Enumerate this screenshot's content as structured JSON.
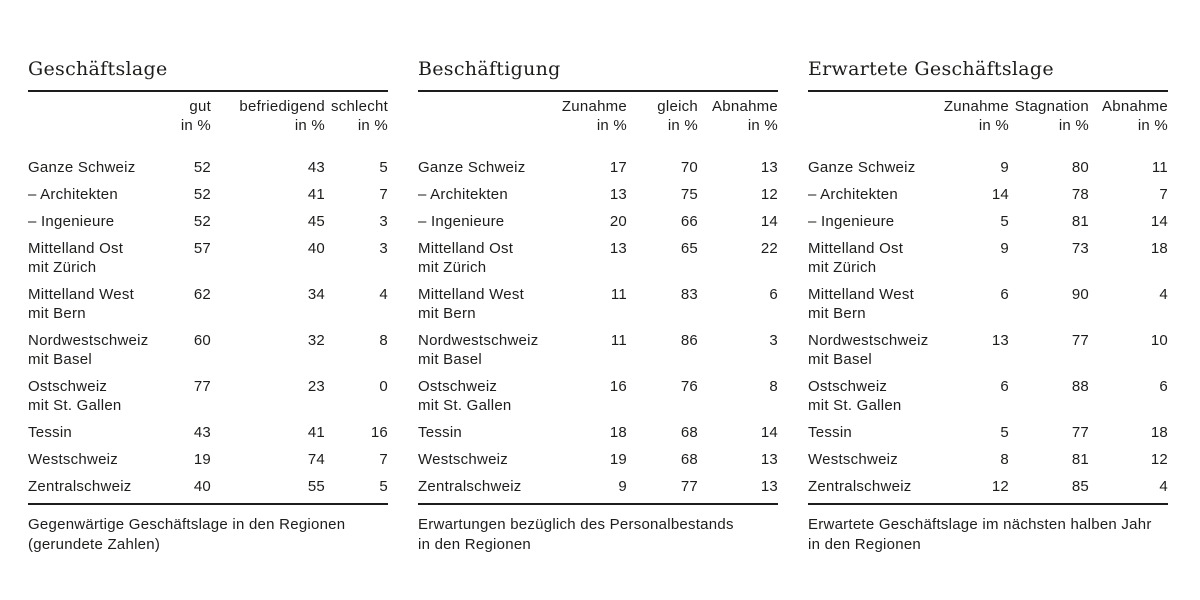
{
  "page": {
    "background": "#ffffff",
    "text_color": "#1d1d1b",
    "rule_color": "#1d1d1b"
  },
  "tables": [
    {
      "title": "Geschäftslage",
      "columns": [
        {
          "label": "gut",
          "unit": "in %"
        },
        {
          "label": "befriedigend",
          "unit": "in %"
        },
        {
          "label": "schlecht",
          "unit": "in %"
        }
      ],
      "rows": [
        {
          "label": "Ganze Schweiz",
          "sublabel": "",
          "values": [
            "52",
            "43",
            "5"
          ]
        },
        {
          "label": "– Architekten",
          "sublabel": "",
          "values": [
            "52",
            "41",
            "7"
          ]
        },
        {
          "label": "– Ingenieure",
          "sublabel": "",
          "values": [
            "52",
            "45",
            "3"
          ]
        },
        {
          "label": "Mittelland Ost",
          "sublabel": "mit Zürich",
          "values": [
            "57",
            "40",
            "3"
          ]
        },
        {
          "label": "Mittelland West",
          "sublabel": "mit Bern",
          "values": [
            "62",
            "34",
            "4"
          ]
        },
        {
          "label": "Nordwestschweiz",
          "sublabel": "mit Basel",
          "values": [
            "60",
            "32",
            "8"
          ]
        },
        {
          "label": "Ostschweiz",
          "sublabel": "mit St. Gallen",
          "values": [
            "77",
            "23",
            "0"
          ]
        },
        {
          "label": "Tessin",
          "sublabel": "",
          "values": [
            "43",
            "41",
            "16"
          ]
        },
        {
          "label": "Westschweiz",
          "sublabel": "",
          "values": [
            "19",
            "74",
            "7"
          ]
        },
        {
          "label": "Zentralschweiz",
          "sublabel": "",
          "values": [
            "40",
            "55",
            "5"
          ]
        }
      ],
      "caption_lines": [
        "Gegenwärtige Geschäftslage in den Regionen",
        "(gerundete Zahlen)"
      ]
    },
    {
      "title": "Beschäftigung",
      "columns": [
        {
          "label": "Zunahme",
          "unit": "in %"
        },
        {
          "label": "gleich",
          "unit": "in %"
        },
        {
          "label": "Abnahme",
          "unit": "in %"
        }
      ],
      "rows": [
        {
          "label": "Ganze Schweiz",
          "sublabel": "",
          "values": [
            "17",
            "70",
            "13"
          ]
        },
        {
          "label": "– Architekten",
          "sublabel": "",
          "values": [
            "13",
            "75",
            "12"
          ]
        },
        {
          "label": "– Ingenieure",
          "sublabel": "",
          "values": [
            "20",
            "66",
            "14"
          ]
        },
        {
          "label": "Mittelland Ost",
          "sublabel": "mit Zürich",
          "values": [
            "13",
            "65",
            "22"
          ]
        },
        {
          "label": "Mittelland West",
          "sublabel": "mit Bern",
          "values": [
            "11",
            "83",
            "6"
          ]
        },
        {
          "label": "Nordwestschweiz",
          "sublabel": "mit Basel",
          "values": [
            "11",
            "86",
            "3"
          ]
        },
        {
          "label": "Ostschweiz",
          "sublabel": "mit St. Gallen",
          "values": [
            "16",
            "76",
            "8"
          ]
        },
        {
          "label": "Tessin",
          "sublabel": "",
          "values": [
            "18",
            "68",
            "14"
          ]
        },
        {
          "label": "Westschweiz",
          "sublabel": "",
          "values": [
            "19",
            "68",
            "13"
          ]
        },
        {
          "label": "Zentralschweiz",
          "sublabel": "",
          "values": [
            "9",
            "77",
            "13"
          ]
        }
      ],
      "caption_lines": [
        "Erwartungen bezüglich des Personalbestands",
        "in den Regionen"
      ]
    },
    {
      "title": "Erwartete Geschäftslage",
      "columns": [
        {
          "label": "Zunahme",
          "unit": "in %"
        },
        {
          "label": "Stagnation",
          "unit": "in %"
        },
        {
          "label": "Abnahme",
          "unit": "in %"
        }
      ],
      "rows": [
        {
          "label": "Ganze Schweiz",
          "sublabel": "",
          "values": [
            "9",
            "80",
            "11"
          ]
        },
        {
          "label": "– Architekten",
          "sublabel": "",
          "values": [
            "14",
            "78",
            "7"
          ]
        },
        {
          "label": "– Ingenieure",
          "sublabel": "",
          "values": [
            "5",
            "81",
            "14"
          ]
        },
        {
          "label": "Mittelland Ost",
          "sublabel": "mit Zürich",
          "values": [
            "9",
            "73",
            "18"
          ]
        },
        {
          "label": "Mittelland West",
          "sublabel": "mit Bern",
          "values": [
            "6",
            "90",
            "4"
          ]
        },
        {
          "label": "Nordwestschweiz",
          "sublabel": "mit Basel",
          "values": [
            "13",
            "77",
            "10"
          ]
        },
        {
          "label": "Ostschweiz",
          "sublabel": "mit St. Gallen",
          "values": [
            "6",
            "88",
            "6"
          ]
        },
        {
          "label": "Tessin",
          "sublabel": "",
          "values": [
            "5",
            "77",
            "18"
          ]
        },
        {
          "label": "Westschweiz",
          "sublabel": "",
          "values": [
            "8",
            "81",
            "12"
          ]
        },
        {
          "label": "Zentralschweiz",
          "sublabel": "",
          "values": [
            "12",
            "85",
            "4"
          ]
        }
      ],
      "caption_lines": [
        "Erwartete Geschäftslage im nächsten halben Jahr",
        "in den Regionen"
      ]
    }
  ]
}
